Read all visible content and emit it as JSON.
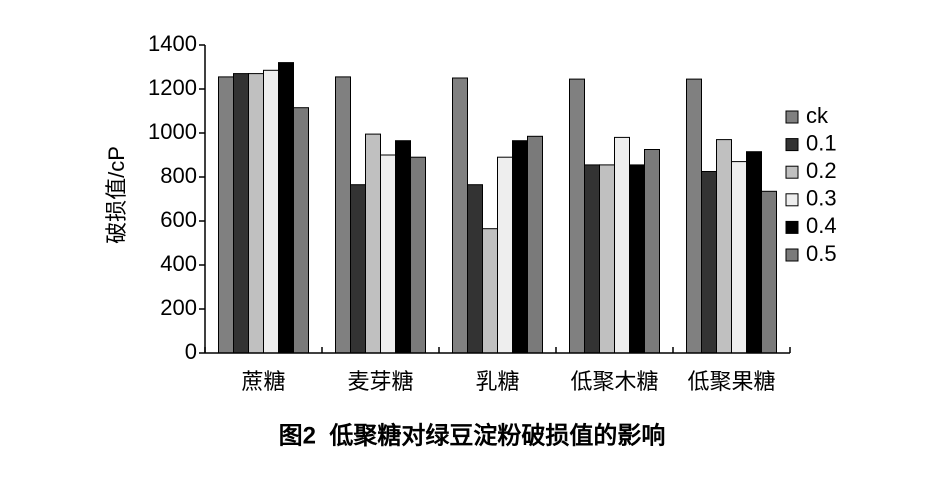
{
  "chart_data": {
    "type": "bar",
    "caption": "图2  低聚糖对绿豆淀粉破损值的影响",
    "y_label": "破损值/cP",
    "categories": [
      "蔗糖",
      "麦芽糖",
      "乳糖",
      "低聚木糖",
      "低聚果糖"
    ],
    "series": [
      {
        "name": "ck",
        "color": "#808080",
        "values": [
          1255,
          1255,
          1250,
          1245,
          1245
        ]
      },
      {
        "name": "0.1",
        "color": "#333333",
        "values": [
          1270,
          765,
          765,
          855,
          825
        ]
      },
      {
        "name": "0.2",
        "color": "#c0c0c0",
        "values": [
          1270,
          995,
          565,
          855,
          970
        ]
      },
      {
        "name": "0.3",
        "color": "#eeeeee",
        "values": [
          1285,
          900,
          890,
          980,
          870
        ]
      },
      {
        "name": "0.4",
        "color": "#000000",
        "values": [
          1320,
          965,
          965,
          855,
          915
        ]
      },
      {
        "name": "0.5",
        "color": "#7a7a7a",
        "values": [
          1115,
          890,
          985,
          925,
          735
        ]
      }
    ],
    "ylim": [
      0,
      1400
    ],
    "yticks": [
      0,
      200,
      400,
      600,
      800,
      1000,
      1200,
      1400
    ],
    "grid": false,
    "legend": "right"
  }
}
